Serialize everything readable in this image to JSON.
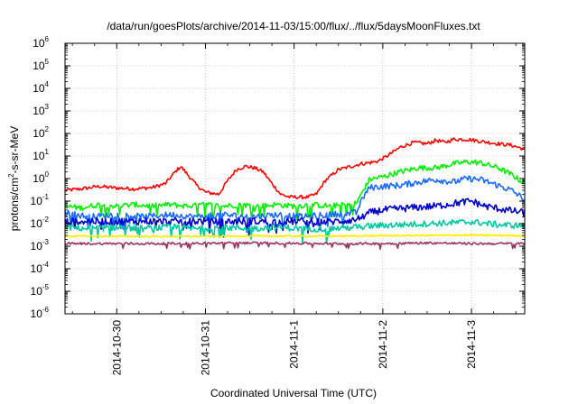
{
  "chart_data": {
    "type": "line",
    "title": "/data/run/goesPlots/archive/2014-11-03/15:00/flux/../flux/5daysMoonFluxes.txt",
    "xlabel": "Coordinated Universal Time (UTC)",
    "ylabel": {
      "base": "protons/cm",
      "sup": "2",
      "rest": "-s-sr-MeV"
    },
    "x_range_days": [
      -0.583,
      4.6
    ],
    "x_ticks": [
      {
        "day": 0,
        "label": "2014-10-30"
      },
      {
        "day": 1,
        "label": "2014-10-31"
      },
      {
        "day": 2,
        "label": "2014-11-1"
      },
      {
        "day": 3,
        "label": "2014-11-2"
      },
      {
        "day": 4,
        "label": "2014-11-3"
      }
    ],
    "y_scale": "log",
    "ylim": [
      1e-06,
      1000000.0
    ],
    "y_ticks": [
      {
        "value": 1e-06,
        "base": "10",
        "exp": "-6"
      },
      {
        "value": 1e-05,
        "base": "10",
        "exp": "-5"
      },
      {
        "value": 0.0001,
        "base": "10",
        "exp": "-4"
      },
      {
        "value": 0.001,
        "base": "10",
        "exp": "-3"
      },
      {
        "value": 0.01,
        "base": "10",
        "exp": "-2"
      },
      {
        "value": 0.1,
        "base": "10",
        "exp": "-1"
      },
      {
        "value": 1,
        "base": "10",
        "exp": "0"
      },
      {
        "value": 10.0,
        "base": "10",
        "exp": "1"
      },
      {
        "value": 100.0,
        "base": "10",
        "exp": "2"
      },
      {
        "value": 1000.0,
        "base": "10",
        "exp": "3"
      },
      {
        "value": 10000.0,
        "base": "10",
        "exp": "4"
      },
      {
        "value": 100000.0,
        "base": "10",
        "exp": "5"
      },
      {
        "value": 1000000.0,
        "base": "10",
        "exp": "6"
      }
    ],
    "grid": true,
    "legend": "none",
    "series": [
      {
        "color": "#ff0000",
        "points": [
          [
            -0.58,
            0.3
          ],
          [
            -0.4,
            0.35
          ],
          [
            -0.2,
            0.45
          ],
          [
            0.0,
            0.38
          ],
          [
            0.2,
            0.35
          ],
          [
            0.4,
            0.4
          ],
          [
            0.55,
            0.6
          ],
          [
            0.65,
            1.8
          ],
          [
            0.72,
            3.5
          ],
          [
            0.8,
            1.5
          ],
          [
            0.9,
            0.5
          ],
          [
            1.0,
            0.25
          ],
          [
            1.15,
            0.2
          ],
          [
            1.25,
            0.8
          ],
          [
            1.35,
            2.5
          ],
          [
            1.45,
            3.5
          ],
          [
            1.55,
            3.0
          ],
          [
            1.65,
            2.0
          ],
          [
            1.75,
            0.6
          ],
          [
            1.85,
            0.2
          ],
          [
            1.95,
            0.15
          ],
          [
            2.05,
            0.15
          ],
          [
            2.15,
            0.15
          ],
          [
            2.25,
            0.2
          ],
          [
            2.35,
            0.8
          ],
          [
            2.5,
            2.5
          ],
          [
            2.65,
            3.5
          ],
          [
            2.75,
            4.5
          ],
          [
            2.85,
            5.0
          ],
          [
            2.95,
            6.0
          ],
          [
            3.05,
            10
          ],
          [
            3.2,
            25
          ],
          [
            3.35,
            40
          ],
          [
            3.5,
            35
          ],
          [
            3.6,
            50
          ],
          [
            3.7,
            40
          ],
          [
            3.8,
            55
          ],
          [
            3.95,
            55
          ],
          [
            4.1,
            45
          ],
          [
            4.3,
            35
          ],
          [
            4.45,
            30
          ],
          [
            4.6,
            20
          ]
        ]
      },
      {
        "color": "#00ee00",
        "points": [
          [
            -0.58,
            0.06
          ],
          [
            -0.4,
            0.05
          ],
          [
            -0.2,
            0.07
          ],
          [
            0.0,
            0.06
          ],
          [
            0.2,
            0.07
          ],
          [
            0.4,
            0.06
          ],
          [
            0.6,
            0.07
          ],
          [
            0.8,
            0.06
          ],
          [
            1.0,
            0.07
          ],
          [
            1.2,
            0.06
          ],
          [
            1.4,
            0.07
          ],
          [
            1.6,
            0.06
          ],
          [
            1.8,
            0.07
          ],
          [
            2.0,
            0.06
          ],
          [
            2.2,
            0.07
          ],
          [
            2.4,
            0.06
          ],
          [
            2.6,
            0.07
          ],
          [
            2.7,
            0.08
          ],
          [
            2.78,
            0.3
          ],
          [
            2.85,
            0.9
          ],
          [
            3.0,
            1.2
          ],
          [
            3.2,
            2.0
          ],
          [
            3.4,
            3.0
          ],
          [
            3.6,
            3.0
          ],
          [
            3.8,
            4.5
          ],
          [
            3.95,
            5.5
          ],
          [
            4.1,
            5.0
          ],
          [
            4.3,
            3.0
          ],
          [
            4.45,
            1.5
          ],
          [
            4.6,
            0.6
          ]
        ]
      },
      {
        "color": "#1a6aff",
        "points": [
          [
            -0.58,
            0.03
          ],
          [
            -0.3,
            0.02
          ],
          [
            0.0,
            0.025
          ],
          [
            0.3,
            0.02
          ],
          [
            0.6,
            0.025
          ],
          [
            0.9,
            0.02
          ],
          [
            1.2,
            0.025
          ],
          [
            1.5,
            0.02
          ],
          [
            1.8,
            0.025
          ],
          [
            2.1,
            0.02
          ],
          [
            2.4,
            0.025
          ],
          [
            2.7,
            0.03
          ],
          [
            2.78,
            0.15
          ],
          [
            2.85,
            0.4
          ],
          [
            3.0,
            0.45
          ],
          [
            3.2,
            0.5
          ],
          [
            3.4,
            0.7
          ],
          [
            3.6,
            0.9
          ],
          [
            3.8,
            0.7
          ],
          [
            3.95,
            1.0
          ],
          [
            4.1,
            0.9
          ],
          [
            4.3,
            0.5
          ],
          [
            4.45,
            0.3
          ],
          [
            4.6,
            0.12
          ]
        ]
      },
      {
        "color": "#0000cc",
        "points": [
          [
            -0.58,
            0.012
          ],
          [
            -0.3,
            0.013
          ],
          [
            0.0,
            0.012
          ],
          [
            0.3,
            0.013
          ],
          [
            0.6,
            0.012
          ],
          [
            0.9,
            0.013
          ],
          [
            1.2,
            0.012
          ],
          [
            1.5,
            0.013
          ],
          [
            1.8,
            0.012
          ],
          [
            2.1,
            0.013
          ],
          [
            2.4,
            0.012
          ],
          [
            2.7,
            0.015
          ],
          [
            2.85,
            0.03
          ],
          [
            3.0,
            0.04
          ],
          [
            3.3,
            0.05
          ],
          [
            3.6,
            0.06
          ],
          [
            3.9,
            0.09
          ],
          [
            4.0,
            0.1
          ],
          [
            4.15,
            0.06
          ],
          [
            4.4,
            0.04
          ],
          [
            4.6,
            0.03
          ]
        ]
      },
      {
        "color": "#00c8a0",
        "points": [
          [
            -0.58,
            0.007
          ],
          [
            -0.3,
            0.006
          ],
          [
            0.0,
            0.007
          ],
          [
            0.3,
            0.006
          ],
          [
            0.6,
            0.007
          ],
          [
            0.9,
            0.006
          ],
          [
            1.2,
            0.007
          ],
          [
            1.5,
            0.006
          ],
          [
            1.8,
            0.007
          ],
          [
            2.1,
            0.006
          ],
          [
            2.4,
            0.006
          ],
          [
            2.7,
            0.007
          ],
          [
            2.9,
            0.008
          ],
          [
            3.2,
            0.009
          ],
          [
            3.5,
            0.01
          ],
          [
            3.8,
            0.011
          ],
          [
            4.0,
            0.012
          ],
          [
            4.3,
            0.009
          ],
          [
            4.6,
            0.008
          ]
        ]
      },
      {
        "color": "#ffee00",
        "points": [
          [
            -0.58,
            0.0028
          ],
          [
            0.5,
            0.0027
          ],
          [
            1.5,
            0.0028
          ],
          [
            2.5,
            0.0028
          ],
          [
            3.0,
            0.0029
          ],
          [
            3.5,
            0.003
          ],
          [
            4.0,
            0.0031
          ],
          [
            4.6,
            0.0029
          ]
        ]
      },
      {
        "color": "#993366",
        "points": [
          [
            -0.58,
            0.0013
          ],
          [
            0.5,
            0.0013
          ],
          [
            1.5,
            0.0014
          ],
          [
            2.5,
            0.0013
          ],
          [
            3.0,
            0.0013
          ],
          [
            3.5,
            0.0014
          ],
          [
            4.0,
            0.0013
          ],
          [
            4.6,
            0.0013
          ]
        ]
      }
    ]
  }
}
